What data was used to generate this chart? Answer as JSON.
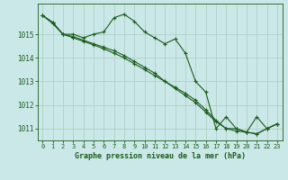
{
  "title": "Graphe pression niveau de la mer (hPa)",
  "bg_color": "#cbe8e8",
  "grid_color": "#b0d0c8",
  "line_color": "#1a5c1a",
  "marker_color": "#1a5c1a",
  "xlim": [
    -0.5,
    23.5
  ],
  "ylim": [
    1010.5,
    1016.3
  ],
  "yticks": [
    1011,
    1012,
    1013,
    1014,
    1015
  ],
  "xticks": [
    0,
    1,
    2,
    3,
    4,
    5,
    6,
    7,
    8,
    9,
    10,
    11,
    12,
    13,
    14,
    15,
    16,
    17,
    18,
    19,
    20,
    21,
    22,
    23
  ],
  "series1_x": [
    0,
    1,
    2,
    3,
    4,
    5,
    6,
    7,
    8,
    9,
    10,
    11,
    12,
    13,
    14,
    15,
    16,
    17,
    18,
    19,
    20,
    21,
    22,
    23
  ],
  "series1_y": [
    1015.8,
    1015.5,
    1015.0,
    1015.0,
    1014.85,
    1015.0,
    1015.1,
    1015.7,
    1015.85,
    1015.55,
    1015.1,
    1014.85,
    1014.6,
    1014.8,
    1014.2,
    1013.0,
    1012.55,
    1011.0,
    1011.5,
    1011.0,
    1010.85,
    1011.5,
    1011.0,
    1011.2
  ],
  "series2_x": [
    0,
    1,
    2,
    3,
    4,
    5,
    6,
    7,
    8,
    9,
    10,
    11,
    12,
    13,
    14,
    15,
    16,
    17,
    18,
    19,
    20,
    21,
    22,
    23
  ],
  "series2_y": [
    1015.8,
    1015.5,
    1015.0,
    1014.85,
    1014.7,
    1014.55,
    1014.38,
    1014.2,
    1014.0,
    1013.75,
    1013.5,
    1013.25,
    1013.0,
    1012.75,
    1012.5,
    1012.2,
    1011.8,
    1011.35,
    1011.0,
    1011.0,
    1010.85,
    1010.78,
    1011.0,
    1011.2
  ],
  "series3_x": [
    0,
    1,
    2,
    3,
    4,
    5,
    6,
    7,
    8,
    9,
    10,
    11,
    12,
    13,
    14,
    15,
    16,
    17,
    18,
    19,
    20,
    21,
    22,
    23
  ],
  "series3_y": [
    1015.8,
    1015.45,
    1015.0,
    1014.9,
    1014.75,
    1014.6,
    1014.45,
    1014.3,
    1014.1,
    1013.85,
    1013.6,
    1013.35,
    1013.0,
    1012.7,
    1012.4,
    1012.1,
    1011.7,
    1011.3,
    1011.0,
    1010.9,
    1010.85,
    1010.78,
    1011.0,
    1011.2
  ]
}
